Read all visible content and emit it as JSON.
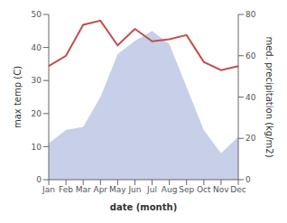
{
  "chart_data": {
    "type": "area",
    "categories": [
      "Jan",
      "Feb",
      "Mar",
      "Apr",
      "May",
      "Jun",
      "Jul",
      "Aug",
      "Sep",
      "Oct",
      "Nov",
      "Dec"
    ],
    "series": [
      {
        "type": "area",
        "color": "#c8cfe8",
        "values": [
          11,
          15,
          16,
          25,
          38,
          42,
          45,
          41,
          28,
          15,
          8,
          13
        ]
      },
      {
        "type": "line",
        "color": "#c0504d",
        "axis": "y2",
        "values": [
          55,
          60,
          75,
          77,
          65,
          73,
          67,
          68,
          70,
          57,
          53,
          55
        ]
      }
    ],
    "xlabel": "date (month)",
    "ylabel": "max temp (C)",
    "y2label": "med. precipitation (kg/m2)",
    "ylim": [
      0,
      50
    ],
    "yticks": [
      0,
      10,
      20,
      30,
      40,
      50
    ],
    "y2lim": [
      0,
      80
    ],
    "y2ticks": [
      0,
      20,
      40,
      60,
      80
    ],
    "grid": false
  }
}
